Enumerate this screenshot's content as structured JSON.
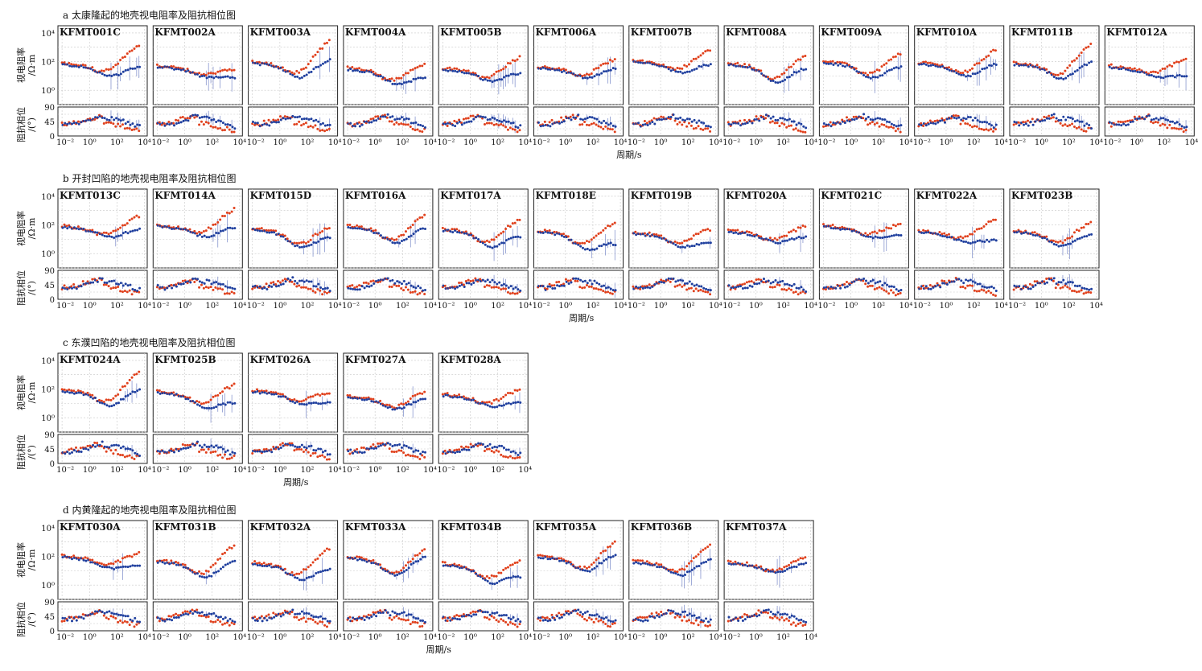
{
  "xlabel": "周期/s",
  "ylabel_rho": [
    "视电阻率",
    "/Ω·m"
  ],
  "ylabel_phase": [
    "阻抗相位",
    "/(°)"
  ],
  "rho_ticks": [
    "10⁰",
    "10²",
    "10⁴"
  ],
  "phase_ticks": [
    "0",
    "45",
    "90"
  ],
  "period_ticks": [
    "10⁻²",
    "10⁰",
    "10²",
    "10⁴"
  ],
  "colors": {
    "xy": "#e0401c",
    "yx": "#1f3f9e"
  },
  "chart_data": [
    {
      "type": "scatter",
      "title": "a 太康隆起的地壳视电阻率及阻抗相位图",
      "stations": [
        "KFMT001C",
        "KFMT002A",
        "KFMT003A",
        "KFMT004A",
        "KFMT005B",
        "KFMT006A",
        "KFMT007B",
        "KFMT008A",
        "KFMT009A",
        "KFMT010A",
        "KFMT011B",
        "KFMT012A"
      ],
      "x_log10_range": [
        -2,
        4
      ],
      "rho_log10_range": [
        -1,
        4.5
      ],
      "phase_range": [
        0,
        90
      ]
    },
    {
      "type": "scatter",
      "title": "b 开封凹陷的地壳视电阻率及阻抗相位图",
      "stations": [
        "KFMT013C",
        "KFMT014A",
        "KFMT015D",
        "KFMT016A",
        "KFMT017A",
        "KFMT018E",
        "KFMT019B",
        "KFMT020A",
        "KFMT021C",
        "KFMT022A",
        "KFMT023B"
      ],
      "x_log10_range": [
        -2,
        4
      ],
      "rho_log10_range": [
        -1,
        4.5
      ],
      "phase_range": [
        0,
        90
      ]
    },
    {
      "type": "scatter",
      "title": "c 东濮凹陷的地壳视电阻率及阻抗相位图",
      "stations": [
        "KFMT024A",
        "KFMT025B",
        "KFMT026A",
        "KFMT027A",
        "KFMT028A"
      ],
      "x_log10_range": [
        -2,
        4
      ],
      "rho_log10_range": [
        -1,
        4.5
      ],
      "phase_range": [
        0,
        90
      ]
    },
    {
      "type": "scatter",
      "title": "d 内黄隆起的地壳视电阻率及阻抗相位图",
      "stations": [
        "KFMT030A",
        "KFMT031B",
        "KFMT032A",
        "KFMT033A",
        "KFMT034B",
        "KFMT035A",
        "KFMT036B",
        "KFMT037A"
      ],
      "x_log10_range": [
        -2,
        4
      ],
      "rho_log10_range": [
        -1,
        4.5
      ],
      "phase_range": [
        0,
        90
      ]
    }
  ]
}
